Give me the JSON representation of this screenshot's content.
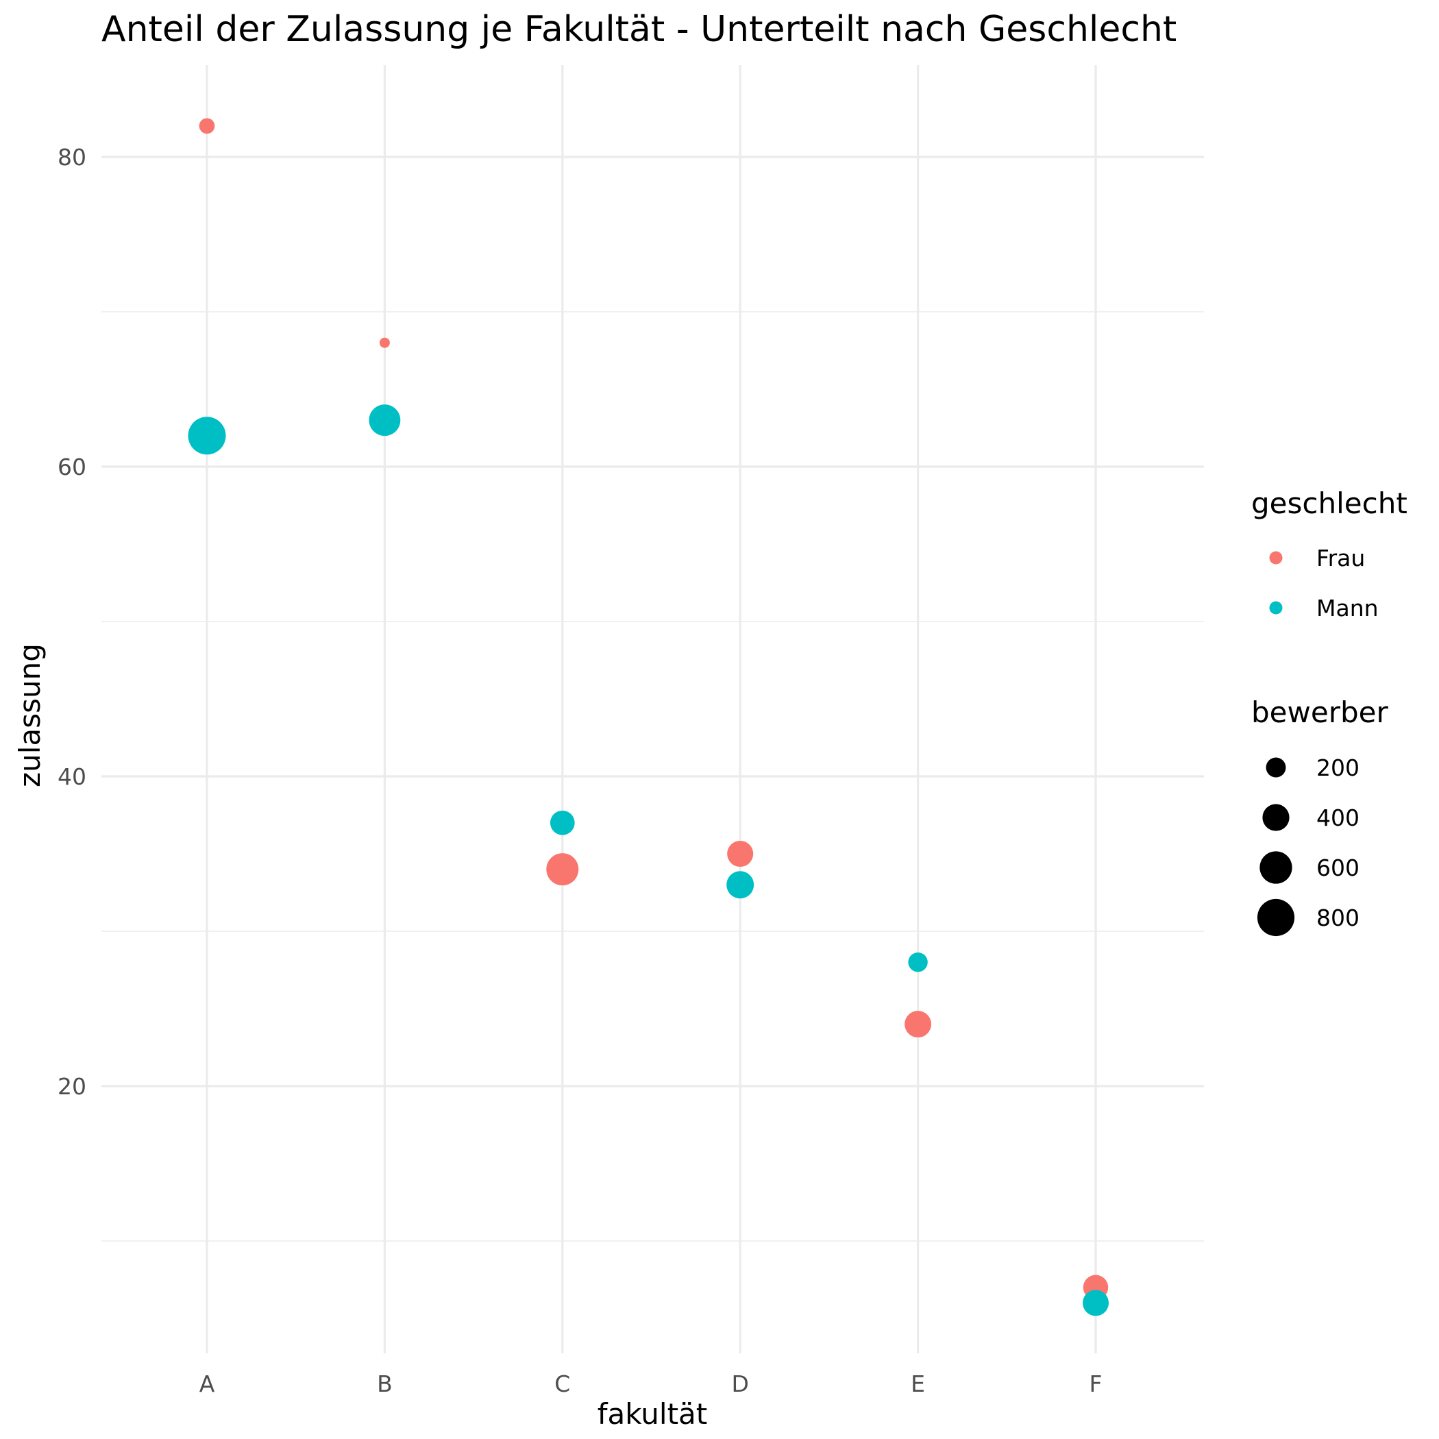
{
  "chart_data": {
    "type": "scatter",
    "title": "Anteil der Zulassung je Fakultät - Unterteilt nach Geschlecht",
    "xlabel": "fakultät",
    "ylabel": "zulassung",
    "categories": [
      "A",
      "B",
      "C",
      "D",
      "E",
      "F"
    ],
    "yticks": [
      20,
      40,
      60,
      80
    ],
    "ylim": [
      2.3,
      84.9
    ],
    "grid": true,
    "legend_position": "right",
    "color_legend": {
      "title": "geschlecht",
      "entries": [
        {
          "name": "Frau",
          "color": "#F8766D"
        },
        {
          "name": "Mann",
          "color": "#00BFC4"
        }
      ]
    },
    "size_legend": {
      "title": "bewerber",
      "breaks": [
        200,
        400,
        600,
        800
      ],
      "range": [
        25,
        825
      ]
    },
    "series": [
      {
        "name": "Frau",
        "color": "#F8766D",
        "points": [
          {
            "x": "A",
            "y": 82,
            "size": 108
          },
          {
            "x": "B",
            "y": 68,
            "size": 25
          },
          {
            "x": "C",
            "y": 34,
            "size": 593
          },
          {
            "x": "D",
            "y": 35,
            "size": 375
          },
          {
            "x": "E",
            "y": 24,
            "size": 393
          },
          {
            "x": "F",
            "y": 7,
            "size": 341
          }
        ]
      },
      {
        "name": "Mann",
        "color": "#00BFC4",
        "points": [
          {
            "x": "A",
            "y": 62,
            "size": 825
          },
          {
            "x": "B",
            "y": 63,
            "size": 560
          },
          {
            "x": "C",
            "y": 37,
            "size": 325
          },
          {
            "x": "D",
            "y": 33,
            "size": 417
          },
          {
            "x": "E",
            "y": 28,
            "size": 191
          },
          {
            "x": "F",
            "y": 6,
            "size": 373
          }
        ]
      }
    ]
  }
}
